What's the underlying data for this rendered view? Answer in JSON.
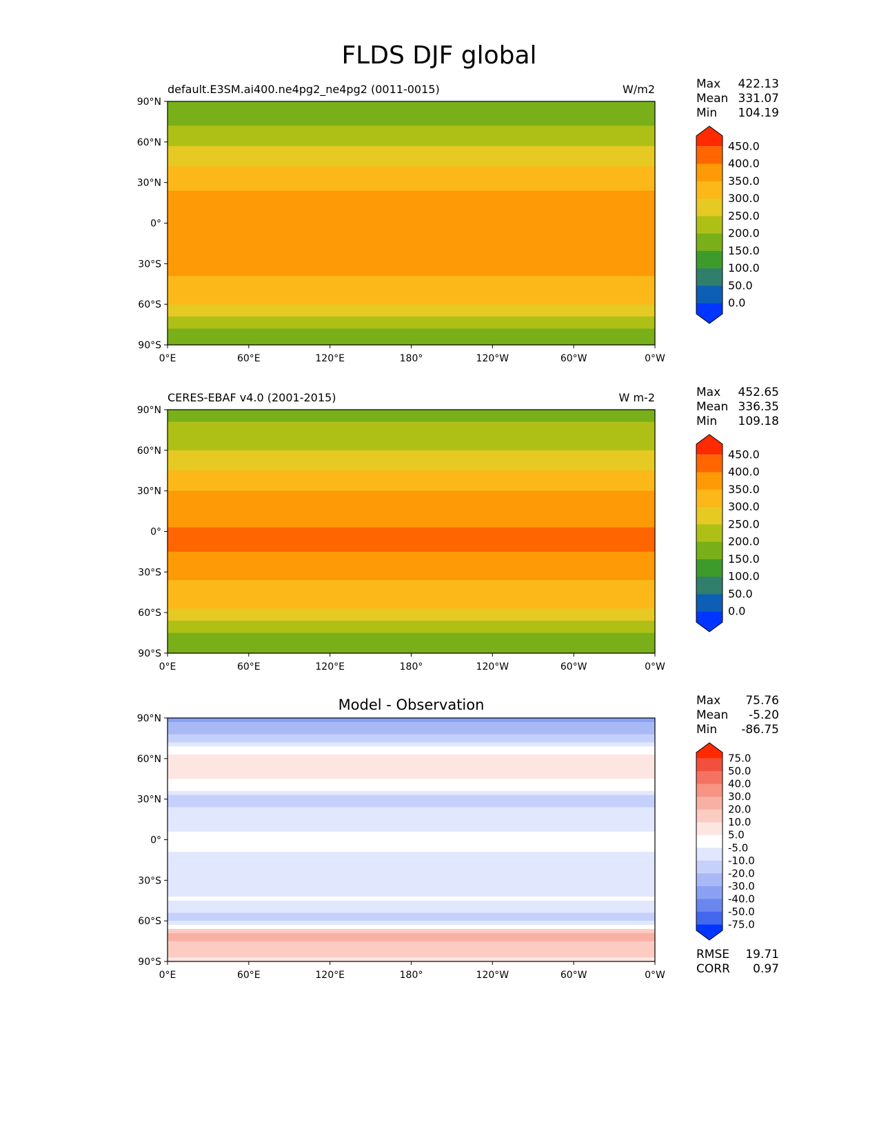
{
  "figure": {
    "title": "FLDS DJF global"
  },
  "chart_data": [
    {
      "type": "heatmap",
      "title": "default.E3SM.ai400.ne4pg2_ne4pg2 (0011-0015)",
      "units": "W/m2",
      "x_ticks": [
        "0°E",
        "60°E",
        "120°E",
        "180°",
        "120°W",
        "60°W",
        "0°W"
      ],
      "y_ticks": [
        "90°N",
        "60°N",
        "30°N",
        "0°",
        "30°S",
        "60°S",
        "90°S"
      ],
      "xlim": [
        0,
        360
      ],
      "ylim": [
        -90,
        90
      ],
      "stats": [
        {
          "label": "Max",
          "value": "422.13"
        },
        {
          "label": "Mean",
          "value": "331.07"
        },
        {
          "label": "Min",
          "value": "104.19"
        }
      ],
      "colorbar": {
        "levels": [
          "450.0",
          "400.0",
          "350.0",
          "300.0",
          "250.0",
          "200.0",
          "150.0",
          "100.0",
          "50.0",
          "0.0"
        ],
        "colors": [
          "#ff2a00",
          "#ff6600",
          "#fd9a06",
          "#fcb819",
          "#e6c922",
          "#aec016",
          "#79b01a",
          "#3d9b2b",
          "#2f7f6c",
          "#0d5fb5",
          "#0036ff"
        ]
      },
      "zonal_mean": [
        {
          "lat": 90,
          "v": 155
        },
        {
          "lat": 75,
          "v": 190
        },
        {
          "lat": 60,
          "v": 240
        },
        {
          "lat": 45,
          "v": 290
        },
        {
          "lat": 30,
          "v": 335
        },
        {
          "lat": 15,
          "v": 365
        },
        {
          "lat": 0,
          "v": 400
        },
        {
          "lat": -15,
          "v": 395
        },
        {
          "lat": -30,
          "v": 365
        },
        {
          "lat": -45,
          "v": 340
        },
        {
          "lat": -60,
          "v": 305
        },
        {
          "lat": -70,
          "v": 250
        },
        {
          "lat": -80,
          "v": 190
        },
        {
          "lat": -90,
          "v": 160
        }
      ]
    },
    {
      "type": "heatmap",
      "title": "CERES-EBAF v4.0 (2001-2015)",
      "units": "W m-2",
      "x_ticks": [
        "0°E",
        "60°E",
        "120°E",
        "180°",
        "120°W",
        "60°W",
        "0°W"
      ],
      "y_ticks": [
        "90°N",
        "60°N",
        "30°N",
        "0°",
        "30°S",
        "60°S",
        "90°S"
      ],
      "xlim": [
        0,
        360
      ],
      "ylim": [
        -90,
        90
      ],
      "stats": [
        {
          "label": "Max",
          "value": "452.65"
        },
        {
          "label": "Mean",
          "value": "336.35"
        },
        {
          "label": "Min",
          "value": "109.18"
        }
      ],
      "colorbar": {
        "levels": [
          "450.0",
          "400.0",
          "350.0",
          "300.0",
          "250.0",
          "200.0",
          "150.0",
          "100.0",
          "50.0",
          "0.0"
        ],
        "colors": [
          "#ff2a00",
          "#ff6600",
          "#fd9a06",
          "#fcb819",
          "#e6c922",
          "#aec016",
          "#79b01a",
          "#3d9b2b",
          "#2f7f6c",
          "#0d5fb5",
          "#0036ff"
        ]
      },
      "zonal_mean": [
        {
          "lat": 90,
          "v": 180
        },
        {
          "lat": 75,
          "v": 210
        },
        {
          "lat": 60,
          "v": 245
        },
        {
          "lat": 45,
          "v": 300
        },
        {
          "lat": 30,
          "v": 350
        },
        {
          "lat": 15,
          "v": 385
        },
        {
          "lat": 0,
          "v": 405
        },
        {
          "lat": -15,
          "v": 400
        },
        {
          "lat": -30,
          "v": 365
        },
        {
          "lat": -45,
          "v": 330
        },
        {
          "lat": -60,
          "v": 290
        },
        {
          "lat": -70,
          "v": 230
        },
        {
          "lat": -80,
          "v": 175
        },
        {
          "lat": -90,
          "v": 165
        }
      ]
    },
    {
      "type": "heatmap",
      "title": "Model - Observation",
      "units": "",
      "x_ticks": [
        "0°E",
        "60°E",
        "120°E",
        "180°",
        "120°W",
        "60°W",
        "0°W"
      ],
      "y_ticks": [
        "90°N",
        "60°N",
        "30°N",
        "0°",
        "30°S",
        "60°S",
        "90°S"
      ],
      "xlim": [
        0,
        360
      ],
      "ylim": [
        -90,
        90
      ],
      "stats": [
        {
          "label": "Max",
          "value": "75.76"
        },
        {
          "label": "Mean",
          "value": "-5.20"
        },
        {
          "label": "Min",
          "value": "-86.75"
        }
      ],
      "extra_stats": [
        {
          "label": "RMSE",
          "value": "19.71"
        },
        {
          "label": "CORR",
          "value": "0.97"
        }
      ],
      "colorbar": {
        "levels": [
          "75.0",
          "50.0",
          "40.0",
          "30.0",
          "20.0",
          "10.0",
          "5.0",
          "-5.0",
          "-10.0",
          "-20.0",
          "-30.0",
          "-40.0",
          "-50.0",
          "-75.0"
        ],
        "colors": [
          "#ff2a00",
          "#f0503c",
          "#f47360",
          "#f79484",
          "#f9b0a4",
          "#fccbc2",
          "#fde6e1",
          "#ffffff",
          "#e1e7fc",
          "#c5d1fa",
          "#a8b9f6",
          "#8aa1f3",
          "#6a86ef",
          "#4368ee",
          "#0036ff"
        ]
      },
      "zonal_mean": [
        {
          "lat": 90,
          "v": -35
        },
        {
          "lat": 75,
          "v": -15
        },
        {
          "lat": 60,
          "v": 10
        },
        {
          "lat": 45,
          "v": 6
        },
        {
          "lat": 30,
          "v": -12
        },
        {
          "lat": 15,
          "v": -8
        },
        {
          "lat": 0,
          "v": -3
        },
        {
          "lat": -15,
          "v": -6
        },
        {
          "lat": -30,
          "v": -10
        },
        {
          "lat": -45,
          "v": -4
        },
        {
          "lat": -60,
          "v": -15
        },
        {
          "lat": -70,
          "v": 22
        },
        {
          "lat": -80,
          "v": 18
        },
        {
          "lat": -90,
          "v": 5
        }
      ]
    }
  ]
}
